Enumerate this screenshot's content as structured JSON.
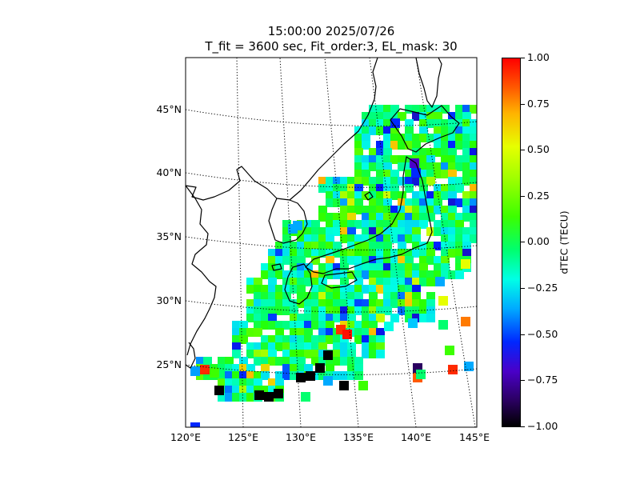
{
  "title": {
    "line1": "15:00:00 2025/07/26",
    "line2": "T_fit = 3600 sec, Fit_order:3, EL_mask: 30"
  },
  "map": {
    "lat_range": [
      20,
      49
    ],
    "lon_range": [
      120,
      145
    ],
    "lat_labels": [
      "45°N",
      "40°N",
      "35°N",
      "30°N",
      "25°N"
    ],
    "lon_labels": [
      "120°E",
      "125°E",
      "130°E",
      "135°E",
      "140°E",
      "145°E"
    ],
    "graticule": "dotted"
  },
  "colorbar": {
    "label": "dTEC (TECU)",
    "range": [
      -1.0,
      1.0
    ],
    "ticks": [
      "1.00",
      "0.75",
      "0.50",
      "0.25",
      "0.00",
      "−0.25",
      "−0.50",
      "−0.75",
      "−1.00"
    ],
    "colors": [
      "#ff0000",
      "#ffb400",
      "#e6ff00",
      "#3cff00",
      "#00ff6e",
      "#00ffe6",
      "#0028ff",
      "#4a00c8",
      "#000000"
    ]
  }
}
